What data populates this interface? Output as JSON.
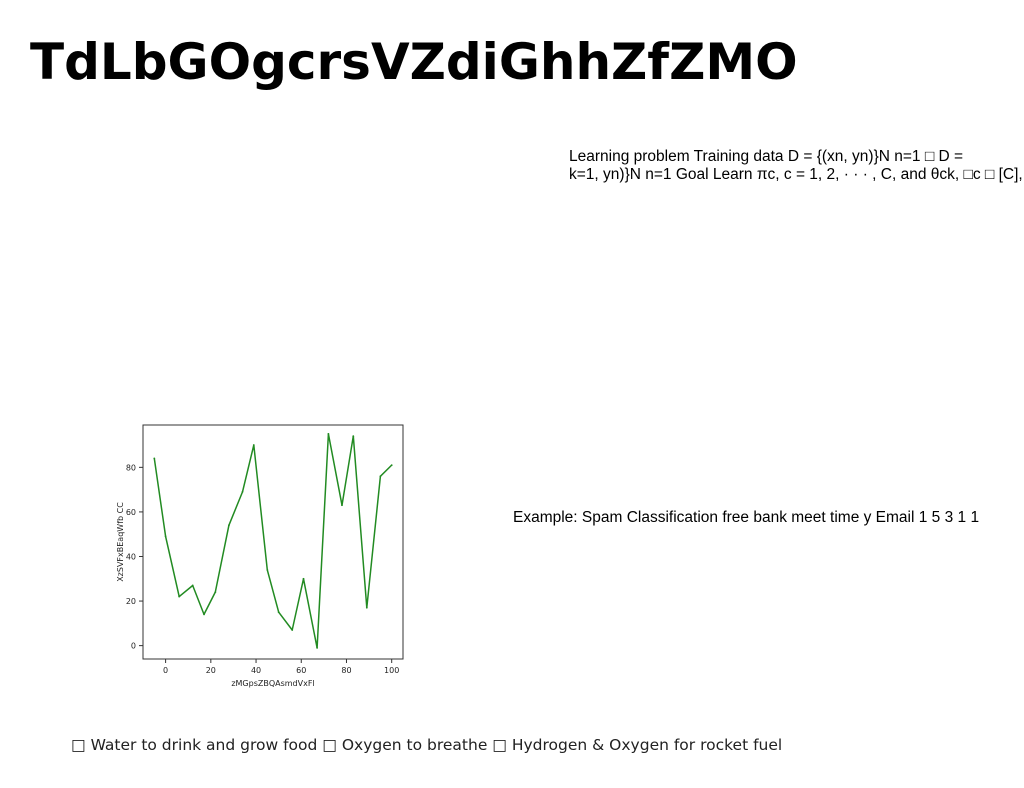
{
  "slide": {
    "title": "TdLbGOgcrsVZdiGhhZfZMO",
    "learning_text": {
      "line1": "Learning problem Training data D = {(xn, yn)}N n=1 □ D =",
      "line2": "k=1, yn)}N n=1 Goal Learn πc, c = 1, 2, · · · , C, and θck, □c □ [C],"
    },
    "example_text": "Example: Spam Classification free bank meet time y Email 1 5 3 1 1",
    "bullets_text": "□ Water to drink and grow food □ Oxygen to breathe □ Hydrogen & Oxygen for rocket fuel"
  },
  "chart_data": {
    "type": "line",
    "xlabel": "zMGpsZBQAsmdVxFl",
    "ylabel": "XzSVFxBEaqWfb CC",
    "xlim": [
      -10,
      105
    ],
    "ylim": [
      -6,
      99
    ],
    "xticks": [
      0,
      20,
      40,
      60,
      80,
      100
    ],
    "yticks": [
      0,
      20,
      40,
      60,
      80
    ],
    "grid": false,
    "line_color": "#228b22",
    "series": [
      {
        "x": [
          -5,
          0,
          6,
          12,
          17,
          22,
          28,
          34,
          39,
          45,
          50,
          56,
          61,
          67,
          72,
          78,
          83,
          89,
          95,
          100
        ],
        "values": [
          84,
          49,
          22,
          27,
          14,
          24,
          54,
          69,
          90,
          34,
          15,
          7,
          30,
          -1,
          95,
          63,
          94,
          17,
          76,
          81
        ]
      }
    ]
  }
}
